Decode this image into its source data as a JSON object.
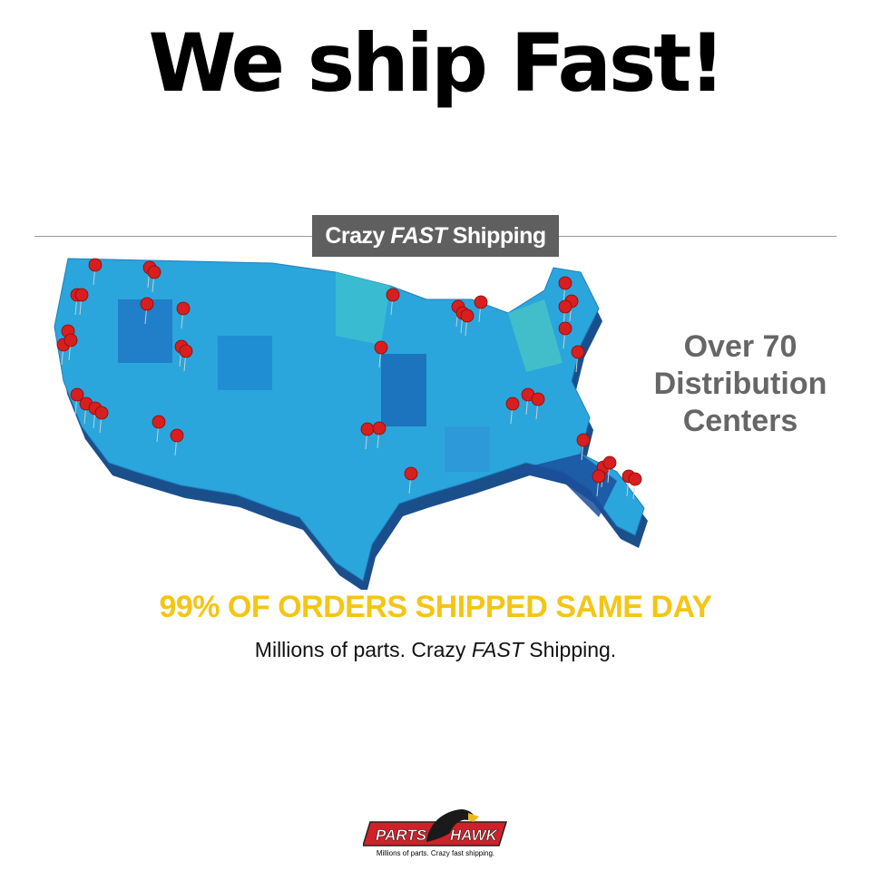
{
  "headline": "We ship Fast!",
  "banner": {
    "pre": "Crazy ",
    "emph": "FAST",
    "post": " Shipping"
  },
  "side_text": [
    "Over 70",
    "Distribution",
    "Centers"
  ],
  "yellow_line": "99% OF ORDERS SHIPPED SAME DAY",
  "tagline": {
    "pre": "Millions of parts. Crazy ",
    "emph": "FAST",
    "post": " Shipping."
  },
  "logo": {
    "left": "PARTS",
    "right": "HAWK",
    "slogan": "Millions of parts. Crazy fast shipping."
  },
  "colors": {
    "map_light": "#2aa6dc",
    "map_dark": "#1b5fa8",
    "pin": "#d81e1e",
    "yellow": "#f4c515",
    "banner": "#5f5f5f",
    "logo_red": "#d0202a"
  },
  "map_icon": "us-map-with-pins"
}
